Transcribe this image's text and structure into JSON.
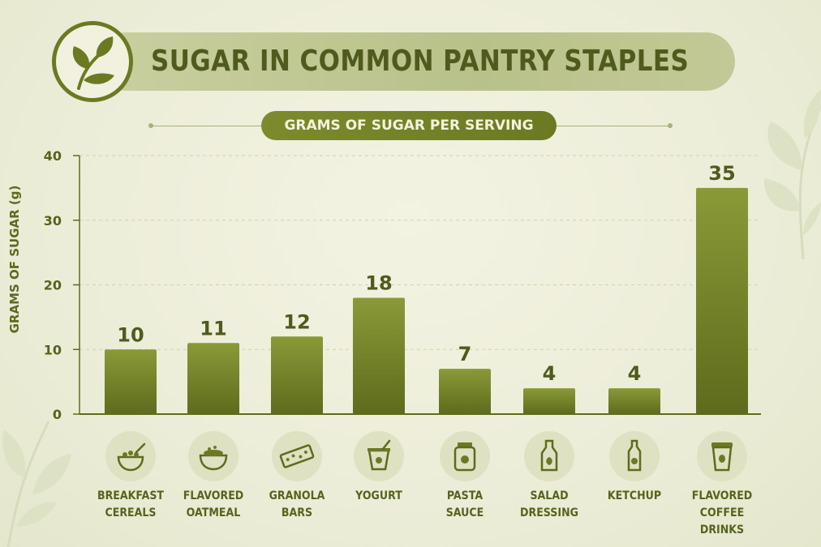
{
  "header": {
    "title": "SUGAR IN COMMON PANTRY STAPLES",
    "subtitle": "GRAMS OF SUGAR PER SERVING",
    "logo_icon": "leaf-icon"
  },
  "colors": {
    "bar_top": "#8a9a38",
    "bar_bottom": "#5e6b1c",
    "text": "#56631c",
    "accent": "#6b7a22"
  },
  "chart_data": {
    "type": "bar",
    "title": "SUGAR IN COMMON PANTRY STAPLES",
    "subtitle": "GRAMS OF SUGAR PER SERVING",
    "xlabel": "",
    "ylabel": "GRAMS OF SUGAR (g)",
    "ylim": [
      0,
      40
    ],
    "yticks": [
      0,
      10,
      20,
      30,
      40
    ],
    "grid": true,
    "categories": [
      {
        "label_lines": [
          "BREAKFAST",
          "CEREALS"
        ],
        "icon": "cereal-bowl-icon"
      },
      {
        "label_lines": [
          "FLAVORED",
          "OATMEAL"
        ],
        "icon": "oatmeal-bowl-icon"
      },
      {
        "label_lines": [
          "GRANOLA",
          "BARS"
        ],
        "icon": "granola-bar-icon"
      },
      {
        "label_lines": [
          "YOGURT"
        ],
        "icon": "yogurt-cup-icon"
      },
      {
        "label_lines": [
          "PASTA",
          "SAUCE"
        ],
        "icon": "sauce-jar-icon"
      },
      {
        "label_lines": [
          "SALAD",
          "DRESSING"
        ],
        "icon": "dressing-bottle-icon"
      },
      {
        "label_lines": [
          "KETCHUP"
        ],
        "icon": "ketchup-bottle-icon"
      },
      {
        "label_lines": [
          "FLAVORED",
          "COFFEE DRINKS"
        ],
        "icon": "coffee-cup-icon"
      }
    ],
    "values": [
      10,
      11,
      12,
      18,
      7,
      4,
      4,
      35
    ],
    "data_labels": [
      "10",
      "11",
      "12",
      "18",
      "7",
      "4",
      "4",
      "35"
    ]
  }
}
